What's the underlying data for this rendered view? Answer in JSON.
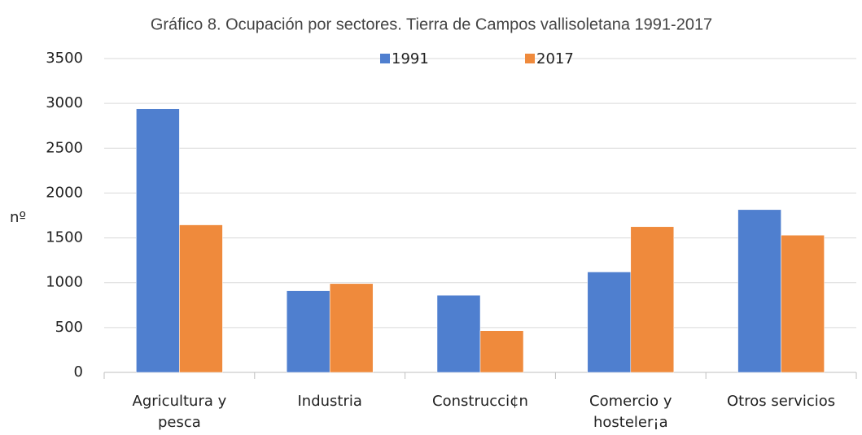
{
  "chart_data": {
    "type": "bar",
    "title": "Gráfico 8. Ocupación por sectores. Tierra de Campos vallisoletana 1991-2017",
    "ylabel": "nº",
    "categories": [
      "Agricultura y pesca",
      "Industria",
      "Construcci¢n",
      "Comercio y hosteler¡a",
      "Otros servicios"
    ],
    "series": [
      {
        "name": "1991",
        "color": "#4f7fcf",
        "values": [
          2940,
          910,
          860,
          1120,
          1815
        ]
      },
      {
        "name": "2017",
        "color": "#ef8a3c",
        "values": [
          1645,
          990,
          465,
          1625,
          1530
        ]
      }
    ],
    "ylim": [
      0,
      3500
    ],
    "yticks": [
      0,
      500,
      1000,
      1500,
      2000,
      2500,
      3000,
      3500
    ],
    "grid": true,
    "legend": "top"
  }
}
